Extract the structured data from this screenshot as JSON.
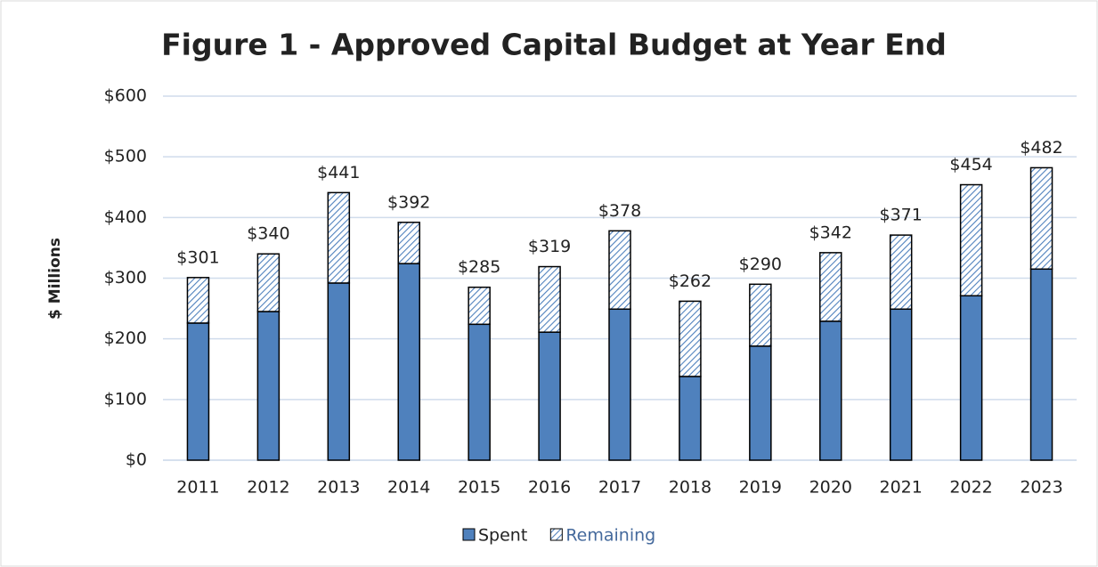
{
  "chart_data": {
    "type": "stacked_bar",
    "title": "Figure 1 - Approved Capital Budget at Year End",
    "y_label": "$ Millions",
    "categories": [
      "2011",
      "2012",
      "2013",
      "2014",
      "2015",
      "2016",
      "2017",
      "2018",
      "2019",
      "2020",
      "2021",
      "2022",
      "2023"
    ],
    "series": [
      {
        "name": "Spent",
        "color": "#4f81bd",
        "pattern": "solid",
        "label_color": "#222222",
        "values": [
          226,
          245,
          292,
          324,
          224,
          211,
          249,
          138,
          188,
          229,
          249,
          271,
          315
        ]
      },
      {
        "name": "Remaining",
        "color": "#4f81bd",
        "pattern": "hatch",
        "label_color": "#44699c",
        "values": [
          75,
          95,
          149,
          68,
          61,
          108,
          129,
          124,
          102,
          113,
          122,
          183,
          167
        ]
      }
    ],
    "total_labels": [
      "$301",
      "$340",
      "$441",
      "$392",
      "$285",
      "$319",
      "$378",
      "$262",
      "$290",
      "$342",
      "$371",
      "$454",
      "$482"
    ],
    "ylim": [
      0,
      600
    ],
    "yticks": [
      {
        "value": 0,
        "label": "$0"
      },
      {
        "value": 100,
        "label": "$100"
      },
      {
        "value": 200,
        "label": "$200"
      },
      {
        "value": 300,
        "label": "$300"
      },
      {
        "value": 400,
        "label": "$400"
      },
      {
        "value": 500,
        "label": "$500"
      },
      {
        "value": 600,
        "label": "$600"
      }
    ],
    "grid": true,
    "legend": "bottom"
  }
}
